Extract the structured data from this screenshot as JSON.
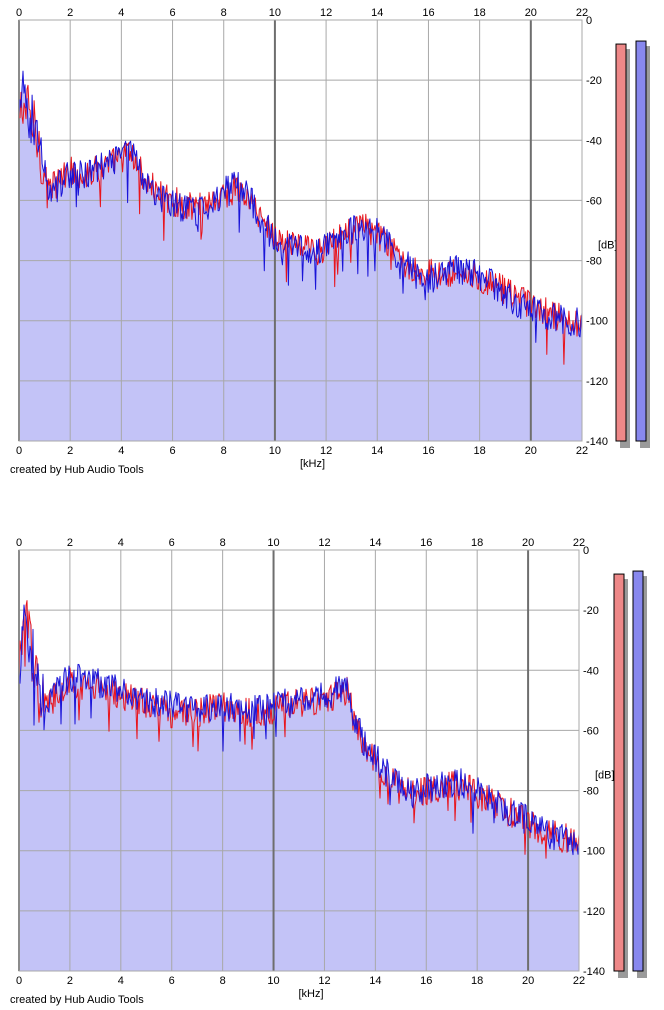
{
  "colors": {
    "fill": "#c3c3f7",
    "left_channel": "#e8141c",
    "right_channel": "#1a14d8",
    "grid": "#a8a8a8",
    "grid_major": "#6e6e6e",
    "meter_left": "#ee8888",
    "meter_right": "#8888ee",
    "meter_shadow": "#9a9a9a"
  },
  "chart_data": [
    {
      "type": "area",
      "x_unit_label": "[kHz]",
      "y_unit_label": "[dB]",
      "xlim": [
        0,
        22
      ],
      "ylim": [
        -140,
        0
      ],
      "x_ticks": [
        "0",
        "2",
        "4",
        "6",
        "8",
        "10",
        "12",
        "14",
        "16",
        "18",
        "20",
        "22"
      ],
      "y_ticks": [
        "0",
        "-20",
        "-40",
        "-60",
        "-80",
        "-100",
        "-120",
        "-140"
      ],
      "grid": true,
      "credit": "created by Hub Audio Tools",
      "series": [
        {
          "channel": "left",
          "x": [
            0,
            0.1,
            0.2,
            0.4,
            0.6,
            0.8,
            1.0,
            1.2,
            1.5,
            2.0,
            2.5,
            3.0,
            3.5,
            4.0,
            4.3,
            4.6,
            5.0,
            5.5,
            6.0,
            6.5,
            7.0,
            7.5,
            8.0,
            8.5,
            9.0,
            9.5,
            10.0,
            10.5,
            11.0,
            11.5,
            12.0,
            12.5,
            13.0,
            13.5,
            14.0,
            14.5,
            15.0,
            15.5,
            16.0,
            16.5,
            17.0,
            17.5,
            18.0,
            18.5,
            19.0,
            19.5,
            20.0,
            20.5,
            21.0,
            21.5,
            22.0
          ],
          "y": [
            -35,
            -30,
            -28,
            -32,
            -36,
            -42,
            -50,
            -56,
            -54,
            -50,
            -52,
            -50,
            -48,
            -46,
            -44,
            -48,
            -54,
            -58,
            -60,
            -62,
            -62,
            -60,
            -58,
            -56,
            -60,
            -66,
            -72,
            -74,
            -75,
            -77,
            -76,
            -73,
            -70,
            -69,
            -71,
            -76,
            -80,
            -83,
            -84,
            -84,
            -84,
            -84,
            -86,
            -88,
            -90,
            -93,
            -95,
            -97,
            -99,
            -100,
            -101
          ]
        },
        {
          "channel": "right",
          "x": [
            0,
            0.1,
            0.2,
            0.4,
            0.6,
            0.8,
            1.0,
            1.2,
            1.5,
            2.0,
            2.5,
            3.0,
            3.5,
            4.0,
            4.3,
            4.6,
            5.0,
            5.5,
            6.0,
            6.5,
            7.0,
            7.5,
            8.0,
            8.5,
            9.0,
            9.5,
            10.0,
            10.5,
            11.0,
            11.5,
            12.0,
            12.5,
            13.0,
            13.5,
            14.0,
            14.5,
            15.0,
            15.5,
            16.0,
            16.5,
            17.0,
            17.5,
            18.0,
            18.5,
            19.0,
            19.5,
            20.0,
            20.5,
            21.0,
            21.5,
            22.0
          ],
          "y": [
            -34,
            -28,
            -26,
            -30,
            -35,
            -41,
            -50,
            -57,
            -55,
            -51,
            -52,
            -50,
            -48,
            -45,
            -43,
            -47,
            -55,
            -59,
            -61,
            -63,
            -64,
            -61,
            -57,
            -54,
            -59,
            -67,
            -73,
            -75,
            -76,
            -78,
            -75,
            -72,
            -70,
            -69,
            -70,
            -75,
            -80,
            -85,
            -86,
            -85,
            -83,
            -83,
            -85,
            -88,
            -91,
            -94,
            -96,
            -98,
            -99,
            -100,
            -101
          ]
        }
      ],
      "meters": [
        {
          "channel": "left",
          "level_db": -8
        },
        {
          "channel": "right",
          "level_db": -7
        }
      ]
    },
    {
      "type": "area",
      "x_unit_label": "[kHz]",
      "y_unit_label": "[dB]",
      "xlim": [
        0,
        22
      ],
      "ylim": [
        -140,
        0
      ],
      "x_ticks": [
        "0",
        "2",
        "4",
        "6",
        "8",
        "10",
        "12",
        "14",
        "16",
        "18",
        "20",
        "22"
      ],
      "y_ticks": [
        "0",
        "-20",
        "-40",
        "-60",
        "-80",
        "-100",
        "-120",
        "-140"
      ],
      "grid": true,
      "credit": "created by Hub Audio Tools",
      "series": [
        {
          "channel": "left",
          "x": [
            0,
            0.1,
            0.2,
            0.4,
            0.6,
            0.8,
            1.0,
            1.5,
            2.0,
            2.5,
            3.0,
            3.5,
            4.0,
            4.5,
            5.0,
            5.5,
            6.0,
            6.5,
            7.0,
            7.5,
            8.0,
            8.5,
            9.0,
            9.5,
            10.0,
            10.5,
            11.0,
            11.5,
            12.0,
            12.5,
            12.9,
            13.2,
            13.5,
            14.0,
            14.5,
            15.0,
            15.5,
            16.0,
            16.5,
            17.0,
            17.5,
            18.0,
            18.5,
            19.0,
            19.5,
            20.0,
            20.5,
            21.0,
            21.5,
            22.0
          ],
          "y": [
            -45,
            -30,
            -22,
            -30,
            -40,
            -48,
            -52,
            -48,
            -44,
            -45,
            -46,
            -47,
            -48,
            -50,
            -51,
            -52,
            -53,
            -54,
            -54,
            -53,
            -52,
            -53,
            -54,
            -54,
            -53,
            -52,
            -51,
            -50,
            -49,
            -48,
            -47,
            -58,
            -64,
            -70,
            -76,
            -80,
            -81,
            -80,
            -79,
            -78,
            -79,
            -81,
            -83,
            -86,
            -88,
            -91,
            -93,
            -95,
            -96,
            -97
          ]
        },
        {
          "channel": "right",
          "x": [
            0,
            0.1,
            0.2,
            0.4,
            0.6,
            0.8,
            1.0,
            1.5,
            2.0,
            2.5,
            3.0,
            3.5,
            4.0,
            4.5,
            5.0,
            5.5,
            6.0,
            6.5,
            7.0,
            7.5,
            8.0,
            8.5,
            9.0,
            9.5,
            10.0,
            10.5,
            11.0,
            11.5,
            12.0,
            12.5,
            12.9,
            13.2,
            13.5,
            14.0,
            14.5,
            15.0,
            15.5,
            16.0,
            16.5,
            17.0,
            17.5,
            18.0,
            18.5,
            19.0,
            19.5,
            20.0,
            20.5,
            21.0,
            21.5,
            22.0
          ],
          "y": [
            -44,
            -28,
            -20,
            -29,
            -38,
            -47,
            -51,
            -47,
            -42,
            -43,
            -44,
            -45,
            -46,
            -48,
            -50,
            -51,
            -52,
            -53,
            -53,
            -52,
            -52,
            -53,
            -53,
            -52,
            -52,
            -51,
            -50,
            -49,
            -48,
            -47,
            -46,
            -57,
            -63,
            -69,
            -75,
            -79,
            -81,
            -79,
            -78,
            -77,
            -78,
            -80,
            -82,
            -85,
            -88,
            -90,
            -93,
            -95,
            -96,
            -97
          ]
        }
      ],
      "meters": [
        {
          "channel": "left",
          "level_db": -8
        },
        {
          "channel": "right",
          "level_db": -7
        }
      ]
    }
  ]
}
